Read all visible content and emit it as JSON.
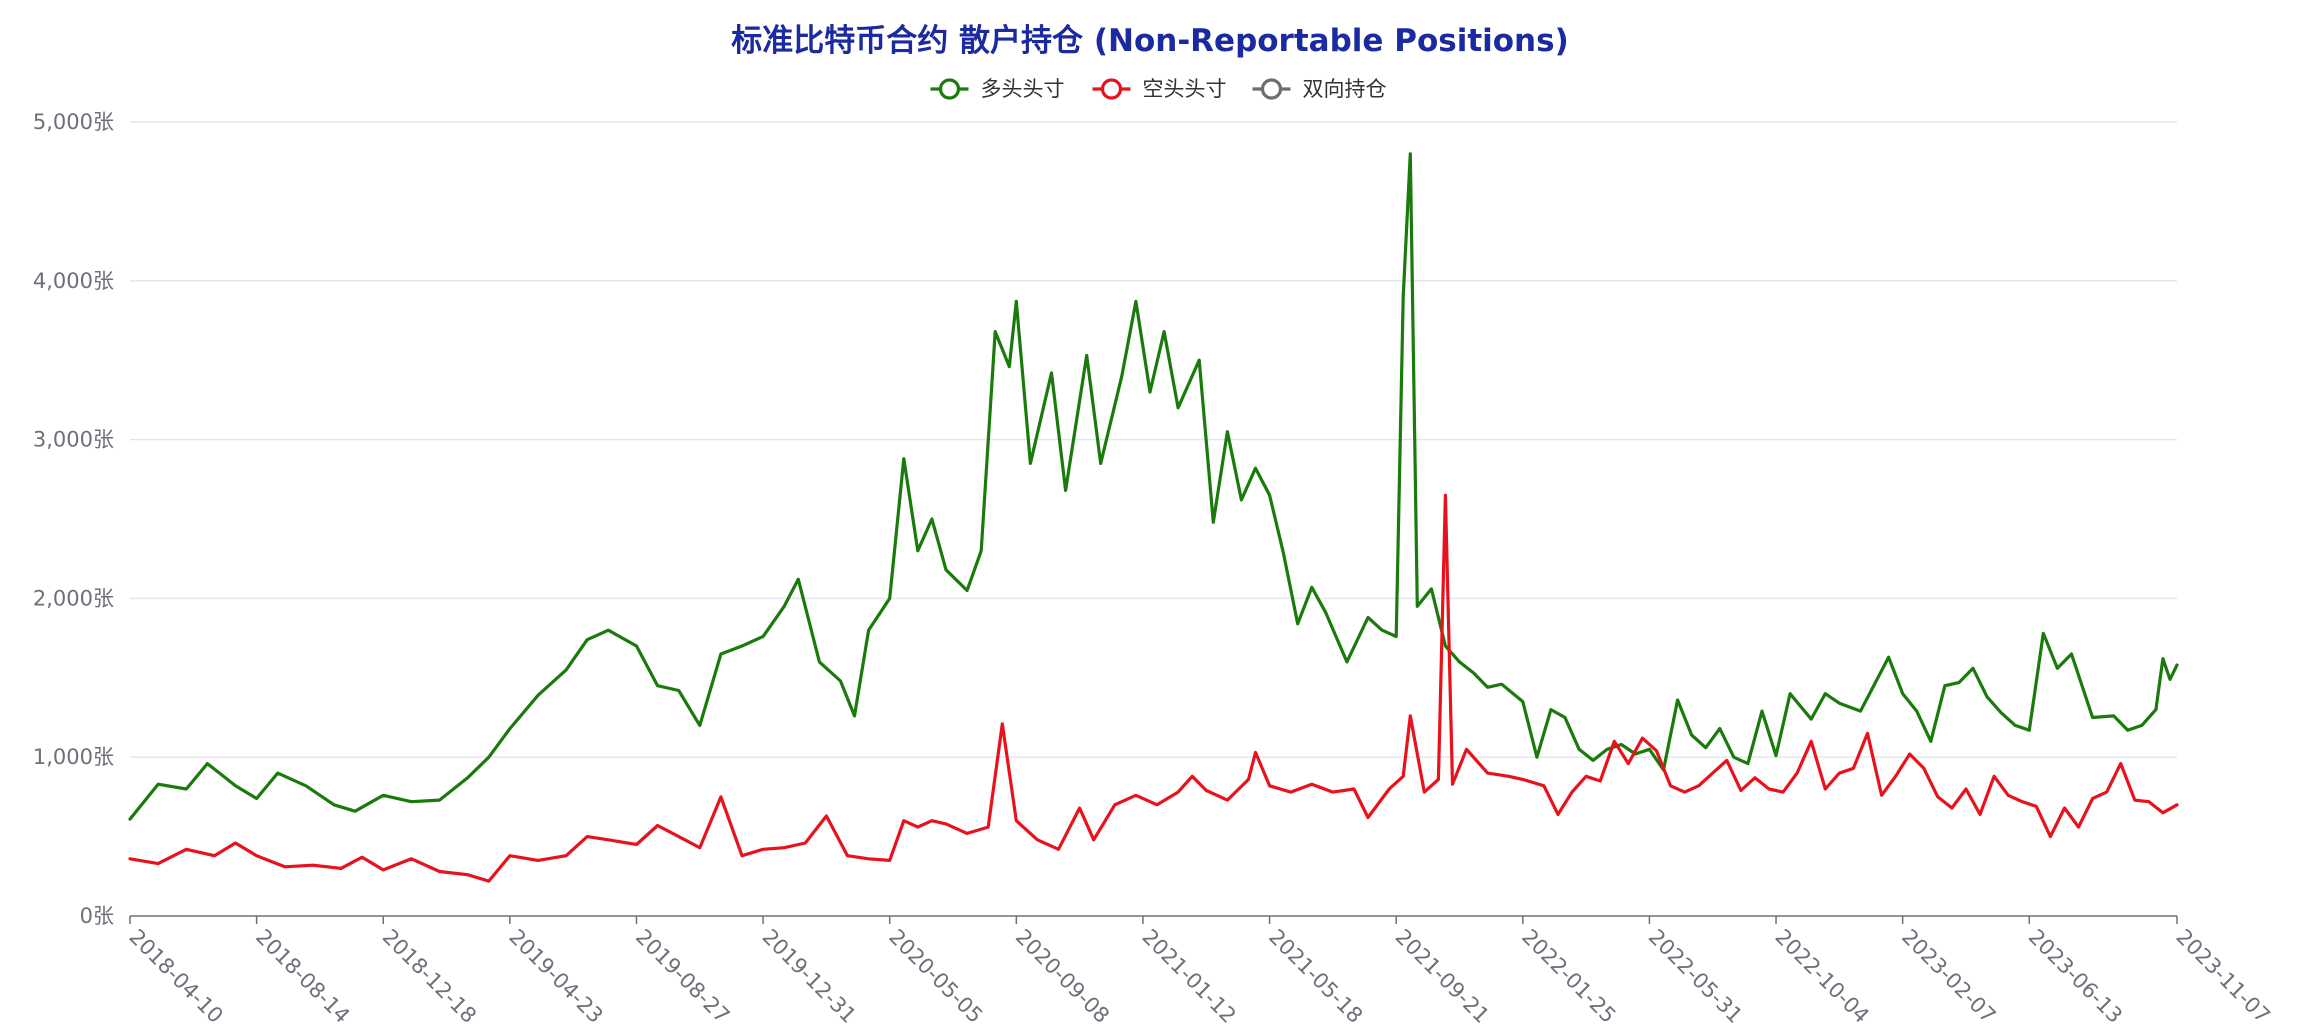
{
  "chart_data": {
    "type": "line",
    "title": "标准比特币合约 散户持仓 (Non-Reportable Positions)",
    "title_color": "#1b2aa0",
    "ylim": [
      0,
      5000
    ],
    "y_ticks": [
      {
        "value": 0,
        "label": "0张"
      },
      {
        "value": 1000,
        "label": "1,000张"
      },
      {
        "value": 2000,
        "label": "2,000张"
      },
      {
        "value": 3000,
        "label": "3,000张"
      },
      {
        "value": 4000,
        "label": "4,000张"
      },
      {
        "value": 5000,
        "label": "5,000张"
      }
    ],
    "x_start": "2018-04-10",
    "x_end": "2023-11-07",
    "x_ticks": [
      "2018-04-10",
      "2018-08-14",
      "2018-12-18",
      "2019-04-23",
      "2019-08-27",
      "2019-12-31",
      "2020-05-05",
      "2020-09-08",
      "2021-01-12",
      "2021-05-18",
      "2021-09-21",
      "2022-01-25",
      "2022-05-31",
      "2022-10-04",
      "2023-02-07",
      "2023-06-13",
      "2023-11-07"
    ],
    "grid": true,
    "legend_position": "top-center",
    "series": [
      {
        "name": "多头头寸",
        "color": "#1a7a0c",
        "points": [
          [
            "2018-04-10",
            610
          ],
          [
            "2018-05-08",
            830
          ],
          [
            "2018-06-05",
            800
          ],
          [
            "2018-06-26",
            960
          ],
          [
            "2018-07-24",
            820
          ],
          [
            "2018-08-14",
            740
          ],
          [
            "2018-09-04",
            900
          ],
          [
            "2018-10-02",
            820
          ],
          [
            "2018-10-30",
            700
          ],
          [
            "2018-11-20",
            660
          ],
          [
            "2018-12-18",
            760
          ],
          [
            "2019-01-15",
            720
          ],
          [
            "2019-02-12",
            730
          ],
          [
            "2019-03-12",
            870
          ],
          [
            "2019-04-02",
            1000
          ],
          [
            "2019-04-23",
            1180
          ],
          [
            "2019-05-21",
            1390
          ],
          [
            "2019-06-18",
            1550
          ],
          [
            "2019-07-09",
            1740
          ],
          [
            "2019-07-30",
            1800
          ],
          [
            "2019-08-27",
            1700
          ],
          [
            "2019-09-17",
            1450
          ],
          [
            "2019-10-08",
            1420
          ],
          [
            "2019-10-29",
            1200
          ],
          [
            "2019-11-19",
            1650
          ],
          [
            "2019-12-10",
            1700
          ],
          [
            "2019-12-31",
            1760
          ],
          [
            "2020-01-21",
            1950
          ],
          [
            "2020-02-04",
            2120
          ],
          [
            "2020-02-25",
            1600
          ],
          [
            "2020-03-17",
            1480
          ],
          [
            "2020-03-31",
            1260
          ],
          [
            "2020-04-14",
            1800
          ],
          [
            "2020-05-05",
            2000
          ],
          [
            "2020-05-19",
            2880
          ],
          [
            "2020-06-02",
            2300
          ],
          [
            "2020-06-16",
            2500
          ],
          [
            "2020-06-30",
            2180
          ],
          [
            "2020-07-21",
            2050
          ],
          [
            "2020-08-04",
            2300
          ],
          [
            "2020-08-18",
            3680
          ],
          [
            "2020-09-01",
            3460
          ],
          [
            "2020-09-08",
            3870
          ],
          [
            "2020-09-22",
            2850
          ],
          [
            "2020-10-13",
            3420
          ],
          [
            "2020-10-27",
            2680
          ],
          [
            "2020-11-17",
            3530
          ],
          [
            "2020-12-01",
            2850
          ],
          [
            "2020-12-22",
            3400
          ],
          [
            "2021-01-05",
            3870
          ],
          [
            "2021-01-19",
            3300
          ],
          [
            "2021-02-02",
            3680
          ],
          [
            "2021-02-16",
            3200
          ],
          [
            "2021-03-09",
            3500
          ],
          [
            "2021-03-23",
            2480
          ],
          [
            "2021-04-06",
            3050
          ],
          [
            "2021-04-20",
            2620
          ],
          [
            "2021-05-04",
            2820
          ],
          [
            "2021-05-18",
            2650
          ],
          [
            "2021-06-01",
            2280
          ],
          [
            "2021-06-15",
            1840
          ],
          [
            "2021-06-29",
            2070
          ],
          [
            "2021-07-13",
            1910
          ],
          [
            "2021-08-03",
            1600
          ],
          [
            "2021-08-24",
            1880
          ],
          [
            "2021-09-07",
            1800
          ],
          [
            "2021-09-21",
            1760
          ],
          [
            "2021-09-28",
            3900
          ],
          [
            "2021-10-05",
            4800
          ],
          [
            "2021-10-12",
            1950
          ],
          [
            "2021-10-26",
            2060
          ],
          [
            "2021-11-09",
            1700
          ],
          [
            "2021-11-23",
            1600
          ],
          [
            "2021-12-07",
            1530
          ],
          [
            "2021-12-21",
            1440
          ],
          [
            "2022-01-04",
            1460
          ],
          [
            "2022-01-25",
            1350
          ],
          [
            "2022-02-08",
            1000
          ],
          [
            "2022-02-22",
            1300
          ],
          [
            "2022-03-08",
            1250
          ],
          [
            "2022-03-22",
            1050
          ],
          [
            "2022-04-05",
            980
          ],
          [
            "2022-04-19",
            1050
          ],
          [
            "2022-05-03",
            1080
          ],
          [
            "2022-05-17",
            1020
          ],
          [
            "2022-05-31",
            1050
          ],
          [
            "2022-06-14",
            920
          ],
          [
            "2022-06-28",
            1360
          ],
          [
            "2022-07-12",
            1140
          ],
          [
            "2022-07-26",
            1060
          ],
          [
            "2022-08-09",
            1180
          ],
          [
            "2022-08-23",
            1000
          ],
          [
            "2022-09-06",
            960
          ],
          [
            "2022-09-20",
            1290
          ],
          [
            "2022-10-04",
            1010
          ],
          [
            "2022-10-18",
            1400
          ],
          [
            "2022-11-08",
            1240
          ],
          [
            "2022-11-22",
            1400
          ],
          [
            "2022-12-06",
            1340
          ],
          [
            "2022-12-27",
            1290
          ],
          [
            "2023-01-10",
            1460
          ],
          [
            "2023-01-24",
            1630
          ],
          [
            "2023-02-07",
            1400
          ],
          [
            "2023-02-21",
            1290
          ],
          [
            "2023-03-07",
            1100
          ],
          [
            "2023-03-21",
            1450
          ],
          [
            "2023-04-04",
            1470
          ],
          [
            "2023-04-18",
            1560
          ],
          [
            "2023-05-02",
            1380
          ],
          [
            "2023-05-16",
            1280
          ],
          [
            "2023-05-30",
            1200
          ],
          [
            "2023-06-13",
            1170
          ],
          [
            "2023-06-27",
            1780
          ],
          [
            "2023-07-11",
            1560
          ],
          [
            "2023-07-25",
            1650
          ],
          [
            "2023-08-15",
            1250
          ],
          [
            "2023-09-05",
            1260
          ],
          [
            "2023-09-19",
            1170
          ],
          [
            "2023-10-03",
            1200
          ],
          [
            "2023-10-17",
            1300
          ],
          [
            "2023-10-24",
            1620
          ],
          [
            "2023-10-31",
            1490
          ],
          [
            "2023-11-07",
            1580
          ]
        ]
      },
      {
        "name": "空头头寸",
        "color": "#e8121c",
        "points": [
          [
            "2018-04-10",
            360
          ],
          [
            "2018-05-08",
            330
          ],
          [
            "2018-06-05",
            420
          ],
          [
            "2018-07-03",
            380
          ],
          [
            "2018-07-24",
            460
          ],
          [
            "2018-08-14",
            380
          ],
          [
            "2018-09-11",
            310
          ],
          [
            "2018-10-09",
            320
          ],
          [
            "2018-11-06",
            300
          ],
          [
            "2018-11-27",
            370
          ],
          [
            "2018-12-18",
            290
          ],
          [
            "2019-01-15",
            360
          ],
          [
            "2019-02-12",
            280
          ],
          [
            "2019-03-12",
            260
          ],
          [
            "2019-04-02",
            220
          ],
          [
            "2019-04-23",
            380
          ],
          [
            "2019-05-21",
            350
          ],
          [
            "2019-06-18",
            380
          ],
          [
            "2019-07-09",
            500
          ],
          [
            "2019-07-30",
            480
          ],
          [
            "2019-08-27",
            450
          ],
          [
            "2019-09-17",
            570
          ],
          [
            "2019-10-08",
            500
          ],
          [
            "2019-10-29",
            430
          ],
          [
            "2019-11-19",
            750
          ],
          [
            "2019-12-10",
            380
          ],
          [
            "2019-12-31",
            420
          ],
          [
            "2020-01-21",
            430
          ],
          [
            "2020-02-11",
            460
          ],
          [
            "2020-03-03",
            630
          ],
          [
            "2020-03-24",
            380
          ],
          [
            "2020-04-14",
            360
          ],
          [
            "2020-05-05",
            350
          ],
          [
            "2020-05-19",
            600
          ],
          [
            "2020-06-02",
            560
          ],
          [
            "2020-06-16",
            600
          ],
          [
            "2020-06-30",
            580
          ],
          [
            "2020-07-21",
            520
          ],
          [
            "2020-08-11",
            560
          ],
          [
            "2020-08-25",
            1210
          ],
          [
            "2020-09-08",
            600
          ],
          [
            "2020-09-29",
            480
          ],
          [
            "2020-10-20",
            420
          ],
          [
            "2020-11-10",
            680
          ],
          [
            "2020-11-24",
            480
          ],
          [
            "2020-12-15",
            700
          ],
          [
            "2021-01-05",
            760
          ],
          [
            "2021-01-26",
            700
          ],
          [
            "2021-02-16",
            780
          ],
          [
            "2021-03-02",
            880
          ],
          [
            "2021-03-16",
            790
          ],
          [
            "2021-04-06",
            730
          ],
          [
            "2021-04-27",
            860
          ],
          [
            "2021-05-04",
            1030
          ],
          [
            "2021-05-18",
            820
          ],
          [
            "2021-06-08",
            780
          ],
          [
            "2021-06-29",
            830
          ],
          [
            "2021-07-20",
            780
          ],
          [
            "2021-08-10",
            800
          ],
          [
            "2021-08-24",
            620
          ],
          [
            "2021-09-14",
            800
          ],
          [
            "2021-09-28",
            880
          ],
          [
            "2021-10-05",
            1260
          ],
          [
            "2021-10-19",
            780
          ],
          [
            "2021-11-02",
            860
          ],
          [
            "2021-11-09",
            2650
          ],
          [
            "2021-11-16",
            830
          ],
          [
            "2021-11-30",
            1050
          ],
          [
            "2021-12-21",
            900
          ],
          [
            "2022-01-11",
            880
          ],
          [
            "2022-01-25",
            860
          ],
          [
            "2022-02-15",
            820
          ],
          [
            "2022-03-01",
            640
          ],
          [
            "2022-03-15",
            780
          ],
          [
            "2022-03-29",
            880
          ],
          [
            "2022-04-12",
            850
          ],
          [
            "2022-04-26",
            1100
          ],
          [
            "2022-05-10",
            960
          ],
          [
            "2022-05-24",
            1120
          ],
          [
            "2022-06-07",
            1040
          ],
          [
            "2022-06-21",
            820
          ],
          [
            "2022-07-05",
            780
          ],
          [
            "2022-07-19",
            820
          ],
          [
            "2022-08-02",
            900
          ],
          [
            "2022-08-16",
            980
          ],
          [
            "2022-08-30",
            790
          ],
          [
            "2022-09-13",
            870
          ],
          [
            "2022-09-27",
            800
          ],
          [
            "2022-10-11",
            780
          ],
          [
            "2022-10-25",
            900
          ],
          [
            "2022-11-08",
            1100
          ],
          [
            "2022-11-22",
            800
          ],
          [
            "2022-12-06",
            900
          ],
          [
            "2022-12-20",
            930
          ],
          [
            "2023-01-03",
            1150
          ],
          [
            "2023-01-17",
            760
          ],
          [
            "2023-01-31",
            880
          ],
          [
            "2023-02-14",
            1020
          ],
          [
            "2023-02-28",
            930
          ],
          [
            "2023-03-14",
            750
          ],
          [
            "2023-03-28",
            680
          ],
          [
            "2023-04-11",
            800
          ],
          [
            "2023-04-25",
            640
          ],
          [
            "2023-05-09",
            880
          ],
          [
            "2023-05-23",
            760
          ],
          [
            "2023-06-06",
            720
          ],
          [
            "2023-06-20",
            690
          ],
          [
            "2023-07-04",
            500
          ],
          [
            "2023-07-18",
            680
          ],
          [
            "2023-08-01",
            560
          ],
          [
            "2023-08-15",
            740
          ],
          [
            "2023-08-29",
            780
          ],
          [
            "2023-09-12",
            960
          ],
          [
            "2023-09-26",
            730
          ],
          [
            "2023-10-10",
            720
          ],
          [
            "2023-10-24",
            650
          ],
          [
            "2023-11-07",
            700
          ]
        ]
      },
      {
        "name": "双向持仓",
        "color": "#6e6e6e",
        "points": []
      }
    ]
  }
}
